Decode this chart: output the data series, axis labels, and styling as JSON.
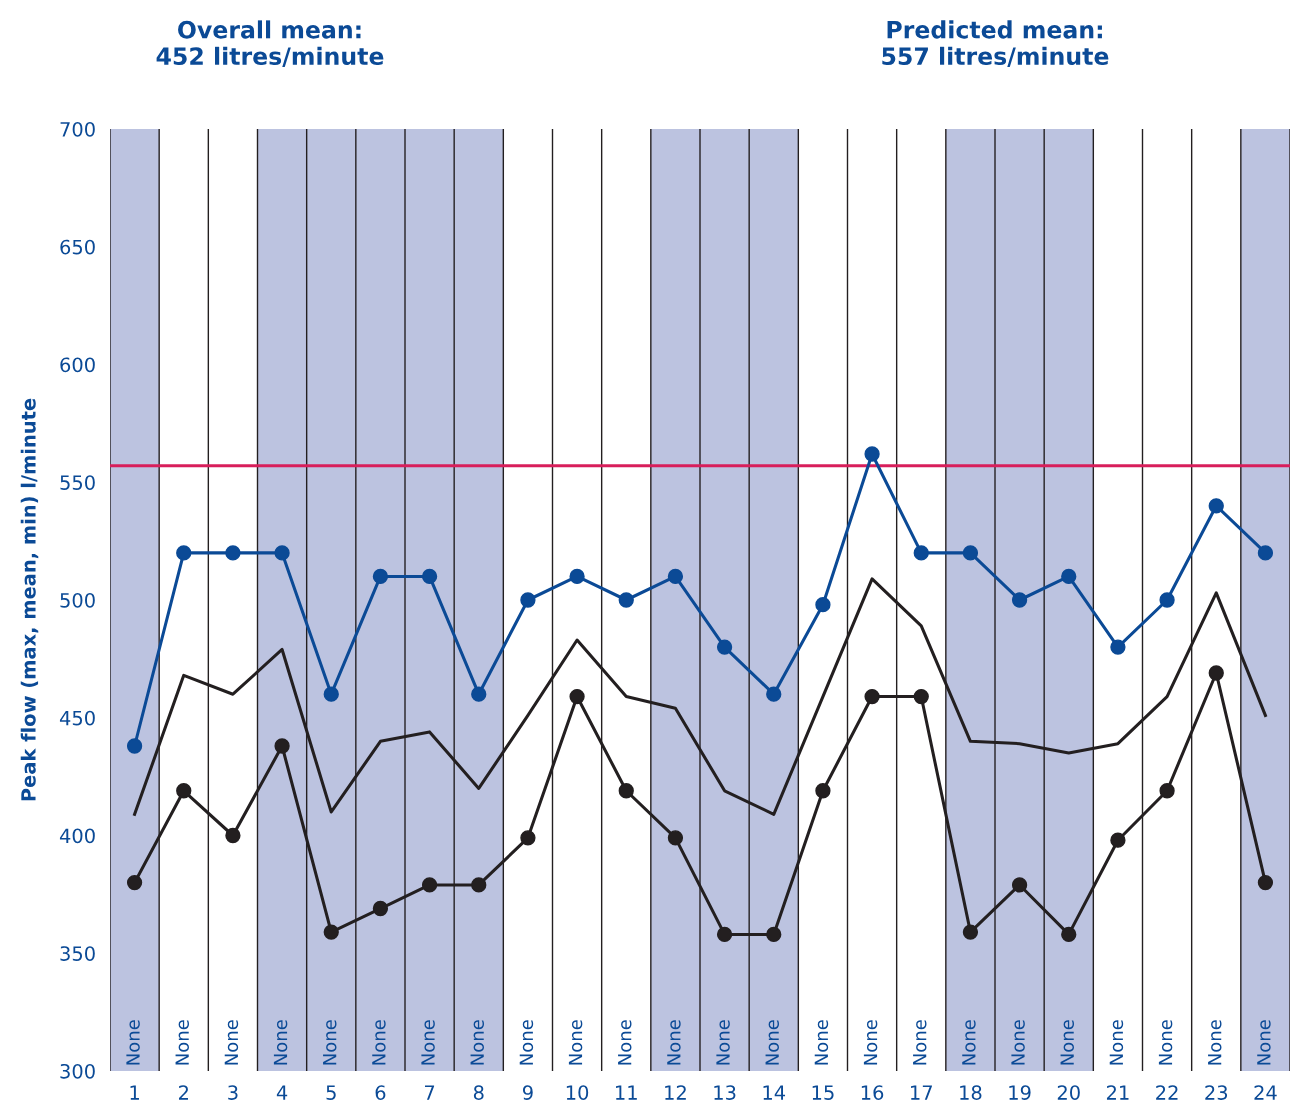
{
  "chart_data": {
    "type": "line",
    "ylabel": "Peak flow (max, mean, min) l/minute",
    "categories": [
      "1",
      "2",
      "3",
      "4",
      "5",
      "6",
      "7",
      "8",
      "9",
      "10",
      "11",
      "12",
      "13",
      "14",
      "15",
      "16",
      "17",
      "18",
      "19",
      "20",
      "21",
      "22",
      "23",
      "24"
    ],
    "series": [
      {
        "color": "#0b4a96",
        "marker": "circle",
        "values": [
          438,
          520,
          520,
          520,
          460,
          510,
          510,
          460,
          500,
          510,
          500,
          510,
          480,
          460,
          498,
          562,
          520,
          520,
          500,
          510,
          480,
          500,
          540,
          520
        ]
      },
      {
        "color": "#231f20",
        "marker": "none",
        "values": [
          409,
          468,
          460,
          479,
          410,
          440,
          444,
          420,
          451,
          483,
          459,
          454,
          419,
          409,
          459,
          509,
          489,
          440,
          439,
          435,
          439,
          459,
          503,
          451
        ]
      },
      {
        "color": "#231f20",
        "marker": "circle",
        "values": [
          380,
          419,
          400,
          438,
          359,
          369,
          379,
          379,
          399,
          459,
          419,
          399,
          358,
          358,
          419,
          459,
          459,
          359,
          379,
          358,
          398,
          419,
          469,
          380
        ]
      }
    ],
    "ylim": [
      300,
      700
    ],
    "yticks": [
      300,
      350,
      400,
      450,
      500,
      550,
      600,
      650,
      700
    ],
    "grid": "x",
    "ref_lines": [
      {
        "axis": "y",
        "value": 557,
        "color": "#d81e5b"
      }
    ],
    "bands": [
      {
        "axis": "x",
        "from": "1",
        "to": "1",
        "color": "#bcc3e0"
      },
      {
        "axis": "x",
        "from": "4",
        "to": "8",
        "color": "#bcc3e0"
      },
      {
        "axis": "x",
        "from": "12",
        "to": "14",
        "color": "#bcc3e0"
      },
      {
        "axis": "x",
        "from": "18",
        "to": "20",
        "color": "#bcc3e0"
      },
      {
        "axis": "x",
        "from": "24",
        "to": "24",
        "color": "#bcc3e0"
      }
    ],
    "annotations": [
      "Overall mean:\n452 litres/minute",
      "Predicted mean:\n557 litres/minute",
      "None",
      "None",
      "None",
      "None",
      "None",
      "None",
      "None",
      "None",
      "None",
      "None",
      "None",
      "None",
      "None",
      "None",
      "None",
      "None",
      "None",
      "None",
      "None",
      "None",
      "None",
      "None",
      "None",
      "None"
    ]
  }
}
